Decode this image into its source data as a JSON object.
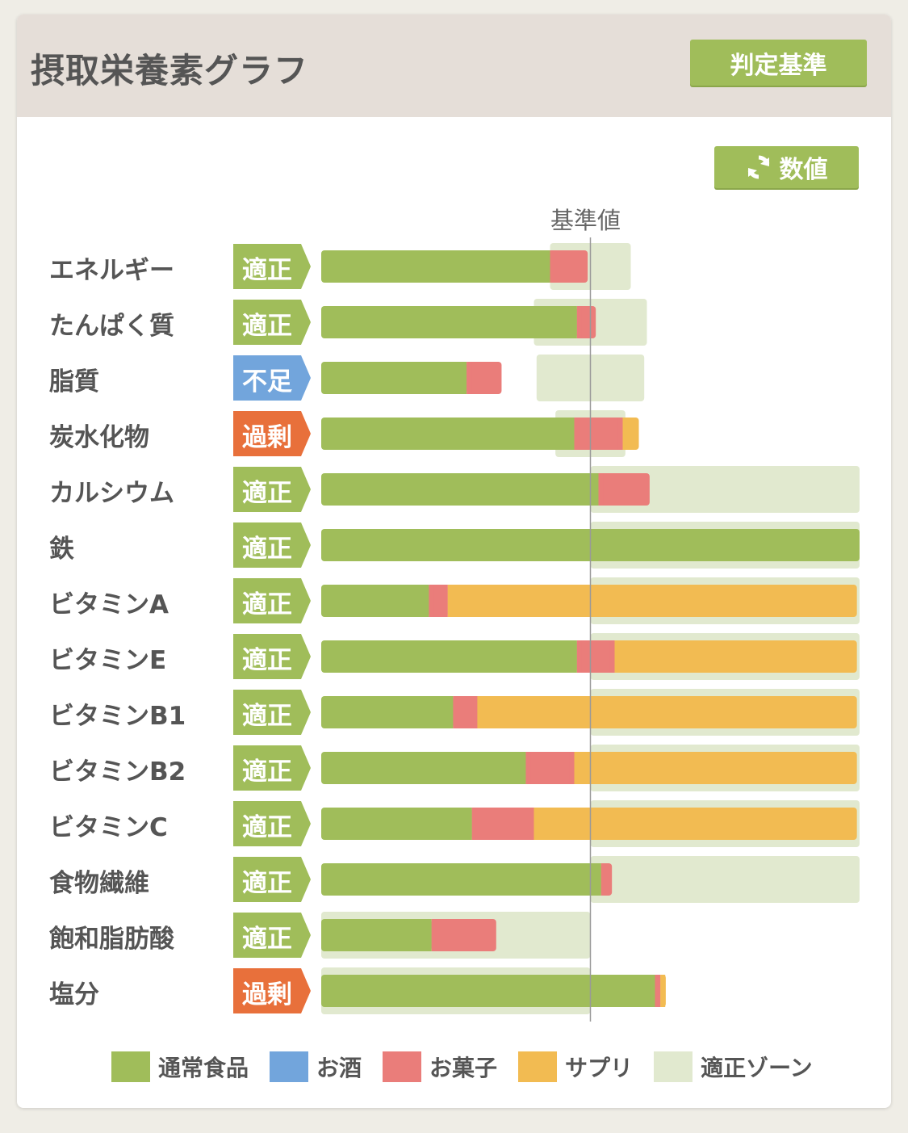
{
  "header": {
    "title": "摂取栄養素グラフ",
    "criteria_button": "判定基準",
    "values_button": "数値"
  },
  "icons": {
    "refresh": "refresh-icon"
  },
  "colors": {
    "normal_food": "#a0bd5a",
    "alcohol": "#72a5dc",
    "snacks": "#ea7d7a",
    "supplement": "#f2bb52",
    "proper_zone": "#e1e9cf",
    "status_proper": "#a0bd5a",
    "status_lacking": "#72a5dc",
    "status_excess": "#e8703b"
  },
  "chart_data": {
    "type": "bar",
    "orientation": "horizontal",
    "stacked": true,
    "unit": "percent of reference value (reference = 100)",
    "reference_label": "基準値",
    "reference_value": 100,
    "xlim": [
      0,
      200
    ],
    "series_names": [
      "通常食品",
      "お酒",
      "お菓子",
      "サプリ"
    ],
    "legend": [
      "通常食品",
      "お酒",
      "お菓子",
      "サプリ",
      "適正ゾーン"
    ],
    "legend_position": "bottom",
    "rows": [
      {
        "name": "エネルギー",
        "status": "適正",
        "status_type": "proper",
        "values": {
          "normal": 85,
          "alcohol": 0,
          "snacks": 14,
          "supplement": 0
        },
        "zone": [
          85,
          115
        ]
      },
      {
        "name": "たんぱく質",
        "status": "適正",
        "status_type": "proper",
        "values": {
          "normal": 95,
          "alcohol": 0,
          "snacks": 7,
          "supplement": 0
        },
        "zone": [
          79,
          121
        ]
      },
      {
        "name": "脂質",
        "status": "不足",
        "status_type": "lacking",
        "values": {
          "normal": 54,
          "alcohol": 0,
          "snacks": 13,
          "supplement": 0
        },
        "zone": [
          80,
          120
        ]
      },
      {
        "name": "炭水化物",
        "status": "過剰",
        "status_type": "excess",
        "values": {
          "normal": 94,
          "alcohol": 0,
          "snacks": 18,
          "supplement": 6
        },
        "zone": [
          87,
          113
        ]
      },
      {
        "name": "カルシウム",
        "status": "適正",
        "status_type": "proper",
        "values": {
          "normal": 103,
          "alcohol": 0,
          "snacks": 19,
          "supplement": 0
        },
        "zone": [
          100,
          200
        ]
      },
      {
        "name": "鉄",
        "status": "適正",
        "status_type": "proper",
        "values": {
          "normal": 200,
          "alcohol": 0,
          "snacks": 0,
          "supplement": 0
        },
        "zone": [
          100,
          200
        ]
      },
      {
        "name": "ビタミンA",
        "status": "適正",
        "status_type": "proper",
        "values": {
          "normal": 40,
          "alcohol": 0,
          "snacks": 7,
          "supplement": 152
        },
        "zone": [
          100,
          200
        ]
      },
      {
        "name": "ビタミンE",
        "status": "適正",
        "status_type": "proper",
        "values": {
          "normal": 95,
          "alcohol": 0,
          "snacks": 14,
          "supplement": 90
        },
        "zone": [
          100,
          200
        ]
      },
      {
        "name": "ビタミンB1",
        "status": "適正",
        "status_type": "proper",
        "values": {
          "normal": 49,
          "alcohol": 0,
          "snacks": 9,
          "supplement": 141
        },
        "zone": [
          100,
          200
        ]
      },
      {
        "name": "ビタミンB2",
        "status": "適正",
        "status_type": "proper",
        "values": {
          "normal": 76,
          "alcohol": 0,
          "snacks": 18,
          "supplement": 105
        },
        "zone": [
          100,
          200
        ]
      },
      {
        "name": "ビタミンC",
        "status": "適正",
        "status_type": "proper",
        "values": {
          "normal": 56,
          "alcohol": 0,
          "snacks": 23,
          "supplement": 120
        },
        "zone": [
          100,
          200
        ]
      },
      {
        "name": "食物繊維",
        "status": "適正",
        "status_type": "proper",
        "values": {
          "normal": 104,
          "alcohol": 0,
          "snacks": 4,
          "supplement": 0
        },
        "zone": [
          100,
          200
        ]
      },
      {
        "name": "飽和脂肪酸",
        "status": "適正",
        "status_type": "proper",
        "values": {
          "normal": 41,
          "alcohol": 0,
          "snacks": 24,
          "supplement": 0
        },
        "zone": [
          0,
          100
        ]
      },
      {
        "name": "塩分",
        "status": "過剰",
        "status_type": "excess",
        "values": {
          "normal": 124,
          "alcohol": 0,
          "snacks": 2,
          "supplement": 2
        },
        "zone": [
          0,
          100
        ]
      }
    ]
  }
}
